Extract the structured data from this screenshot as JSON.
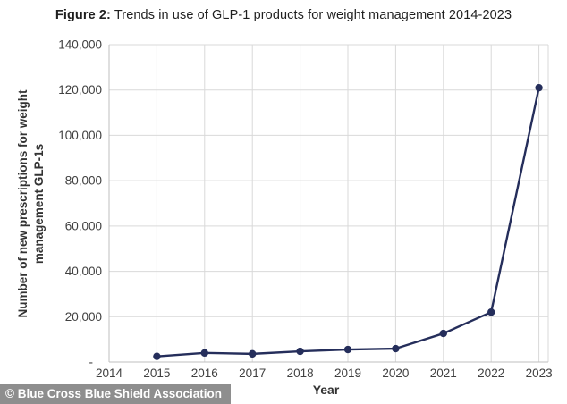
{
  "watermark": {
    "text": "© Blue Cross Blue Shield Association",
    "bg": "#8E8E8E",
    "color": "#FFFFFF"
  },
  "chart_data": {
    "type": "line",
    "title": {
      "prefix": "Figure 2:",
      "text": "Trends in use of GLP-1 products for weight management 2014-2023"
    },
    "x": [
      2015,
      2016,
      2017,
      2018,
      2019,
      2020,
      2021,
      2022,
      2023
    ],
    "values": [
      2500,
      4000,
      3600,
      4700,
      5500,
      5900,
      12600,
      22000,
      121000
    ],
    "xlabel": "Year",
    "ylabel": "Number of new prescriptions for weight management GLP-1s",
    "ylabel_lines": [
      "Number of new prescriptions for weight",
      "management GLP-1s"
    ],
    "x_axis": {
      "min": 2014,
      "max": 2023,
      "ticks": [
        2014,
        2015,
        2016,
        2017,
        2018,
        2019,
        2020,
        2021,
        2022,
        2023
      ]
    },
    "y_axis": {
      "min": 0,
      "max": 140000,
      "ticks": [
        0,
        20000,
        40000,
        60000,
        80000,
        100000,
        120000,
        140000
      ],
      "tick_labels": [
        "-",
        "20,000",
        "40,000",
        "60,000",
        "80,000",
        "100,000",
        "120,000",
        "140,000"
      ]
    },
    "grid": true,
    "legend": "none",
    "styles": {
      "line_color": "#252E5B",
      "marker_color": "#252E5B",
      "grid_color": "#D9D9D9",
      "axis_color": "#BFBFBF",
      "tick_text_color": "#404040",
      "line_width": 2.4,
      "marker_radius": 4.2
    }
  }
}
